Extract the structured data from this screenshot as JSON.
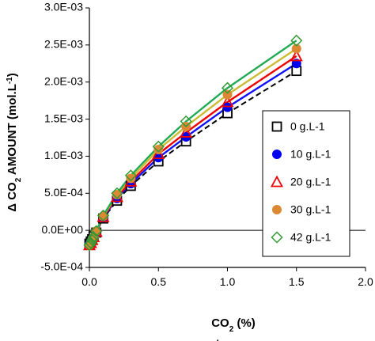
{
  "chart_data": {
    "type": "scatter",
    "x_axis": {
      "label_main": "CO",
      "label_sub": "2",
      "label_tail": " (%)",
      "min": 0,
      "max": 2,
      "ticks": [
        0,
        0.5,
        1,
        1.5,
        2
      ],
      "tick_labels": [
        "0.0",
        "0.5",
        "1.0",
        "1.5",
        "2.0"
      ]
    },
    "y_axis": {
      "label_pre": "Δ CO",
      "label_sub": "2",
      "label_mid": " AMOUNT (mol.L",
      "label_sup": "-1",
      "label_post": ")",
      "min": -0.0005,
      "max": 0.003,
      "ticks": [
        -0.0005,
        0,
        0.0005,
        0.001,
        0.0015,
        0.002,
        0.0025,
        0.003
      ],
      "tick_labels": [
        "-5.0E-04",
        "0.0E+00",
        "5.0E-04",
        "1.0E-03",
        "1.5E-03",
        "2.0E-03",
        "2.5E-03",
        "3.0E-03"
      ]
    },
    "grid": false,
    "legend_position": "right",
    "x": [
      0,
      0.01,
      0.02,
      0.03,
      0.05,
      0.1,
      0.2,
      0.3,
      0.5,
      0.7,
      1.0,
      1.5
    ],
    "series": [
      {
        "name": "0 g.L-1",
        "marker": "square-open",
        "marker_color": "#000000",
        "line_color": "#000000",
        "line_style": "dashed",
        "values": [
          -0.00018,
          -0.00015,
          -0.00012,
          -8e-05,
          -3e-05,
          0.00016,
          0.0004,
          0.0006,
          0.00093,
          0.0012,
          0.00158,
          0.00215
        ]
      },
      {
        "name": "10 g.L-1",
        "marker": "circle-filled",
        "marker_color": "#0000ee",
        "line_color": "#1010ff",
        "line_style": "solid",
        "values": [
          -0.00019,
          -0.00016,
          -0.00012,
          -9e-05,
          -2e-05,
          0.00017,
          0.00043,
          0.00063,
          0.00098,
          0.00126,
          0.00166,
          0.00225
        ]
      },
      {
        "name": "20 g.L-1",
        "marker": "triangle-open",
        "marker_color": "#ee0000",
        "line_color": "#ee0000",
        "line_style": "solid",
        "values": [
          -0.0002,
          -0.00017,
          -0.00013,
          -9e-05,
          -2e-05,
          0.00018,
          0.00045,
          0.00066,
          0.00103,
          0.00132,
          0.00173,
          0.00235
        ]
      },
      {
        "name": "30 g.L-1",
        "marker": "circle-filled",
        "marker_color": "#dd8833",
        "line_color": "#ccbb33",
        "line_style": "solid",
        "values": [
          -0.0002,
          -0.00017,
          -0.00013,
          -9e-05,
          -1e-05,
          0.00019,
          0.00048,
          0.0007,
          0.00109,
          0.0014,
          0.00183,
          0.00245
        ]
      },
      {
        "name": "42 g.L-1",
        "marker": "diamond-open",
        "marker_color": "#339933",
        "line_color": "#22aa55",
        "line_style": "solid",
        "values": [
          -0.0002,
          -0.00017,
          -0.00013,
          -9e-05,
          -1e-05,
          0.0002,
          0.0005,
          0.00074,
          0.00113,
          0.00147,
          0.00192,
          0.00256
        ]
      }
    ],
    "footnote": "."
  }
}
